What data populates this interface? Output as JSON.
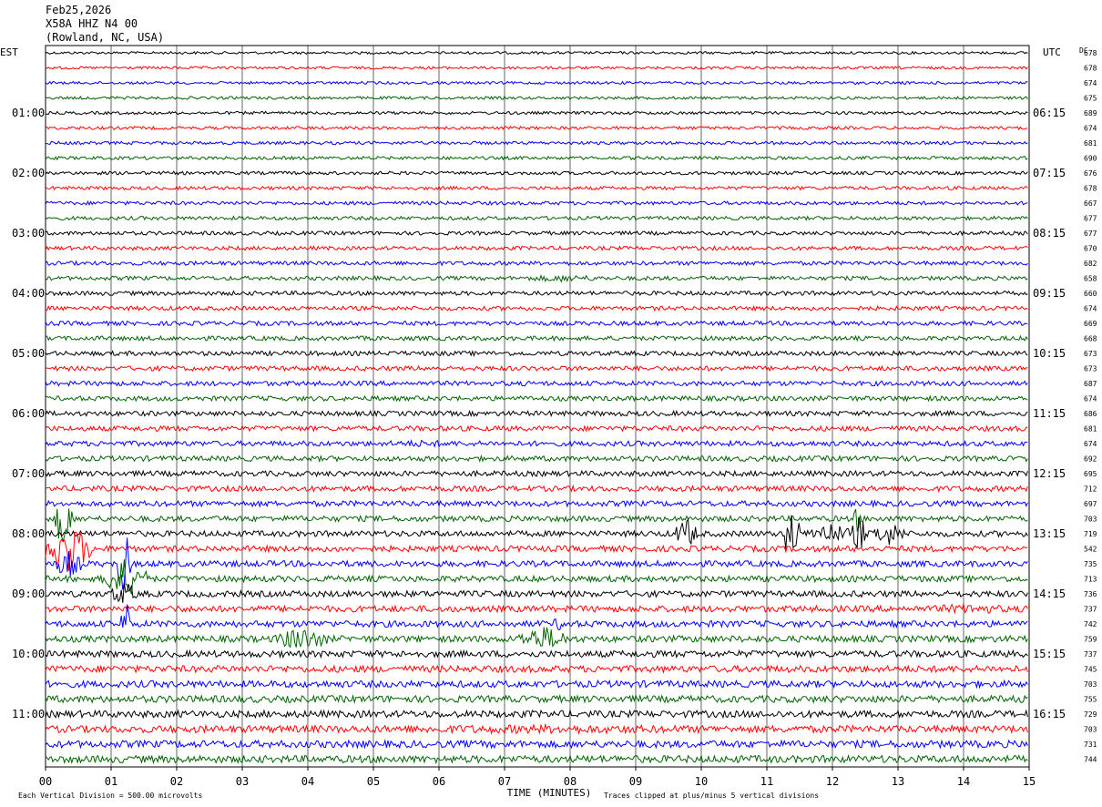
{
  "header": {
    "date": "Feb25,2026",
    "station": "X58A HHZ N4 00",
    "location": "(Rowland, NC, USA)"
  },
  "chart_data": {
    "type": "line",
    "left_timezone": "EST",
    "right_timezone": "UTC",
    "dc_label": "DC",
    "xlabel": "TIME (MINUTES)",
    "xlim": [
      0,
      15
    ],
    "x_ticks": [
      "00",
      "01",
      "02",
      "03",
      "04",
      "05",
      "06",
      "07",
      "08",
      "09",
      "10",
      "11",
      "12",
      "13",
      "14",
      "15"
    ],
    "left_hour_labels": [
      "01:00",
      "02:00",
      "03:00",
      "04:00",
      "05:00",
      "06:00",
      "07:00",
      "08:00",
      "09:00",
      "10:00",
      "11:00"
    ],
    "right_hour_labels": [
      "06:15",
      "07:15",
      "08:15",
      "09:15",
      "10:15",
      "11:15",
      "12:15",
      "13:15",
      "14:15",
      "15:15",
      "16:15"
    ],
    "trace_colors": [
      "#000000",
      "#ff0000",
      "#0000ff",
      "#006400"
    ],
    "dc_offsets": [
      678,
      678,
      674,
      675,
      689,
      674,
      681,
      690,
      676,
      678,
      667,
      677,
      677,
      670,
      682,
      658,
      660,
      674,
      669,
      668,
      673,
      673,
      687,
      674,
      686,
      681,
      674,
      692,
      695,
      712,
      697,
      703,
      719,
      542,
      735,
      713,
      736,
      737,
      742,
      759,
      737,
      745,
      703,
      755,
      729,
      703,
      731,
      744
    ],
    "footer_left": "Each Vertical Division =  500.00 microvolts",
    "footer_right": "Traces clipped at plus/minus 5 vertical divisions"
  }
}
